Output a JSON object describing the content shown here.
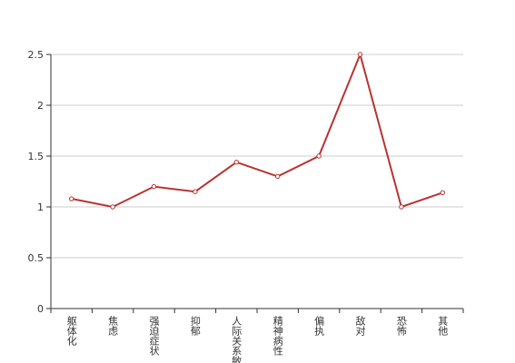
{
  "chart_data": {
    "type": "line",
    "categories": [
      "躯体化",
      "焦虑",
      "强迫症状",
      "抑郁",
      "人际关系敏感",
      "精神病性",
      "偏执",
      "敌对",
      "恐怖",
      "其他"
    ],
    "series": [
      {
        "color": "#b83232",
        "values": [
          1.08,
          1.0,
          1.2,
          1.15,
          1.44,
          1.3,
          1.5,
          2.5,
          1.0,
          1.14
        ]
      }
    ],
    "ylim": [
      0,
      2.5
    ],
    "yticks": [
      0,
      0.5,
      1,
      1.5,
      2,
      2.5
    ],
    "grid": true
  }
}
